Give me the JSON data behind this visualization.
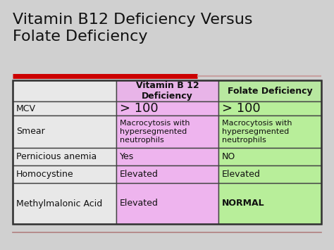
{
  "title": "Vitamin B12 Deficiency Versus\nFolate Deficiency",
  "title_fontsize": 16,
  "title_color": "#111111",
  "bg_color": "#d0d0d0",
  "red_bar_color": "#cc0000",
  "red_bar_thin_color": "#c8a0a0",
  "table": {
    "col_labels": [
      "",
      "Vitamin B 12\nDeficiency",
      "Folate Deficiency"
    ],
    "col_header_bg": [
      "#e8e8e8",
      "#e8b4e8",
      "#b8e8a0"
    ],
    "col_header_fontsize": 9,
    "rows": [
      {
        "label": "MCV",
        "b12": "> 100",
        "folate": "> 100",
        "b12_fontsize": 13,
        "folate_fontsize": 13,
        "b12_bold": false,
        "folate_bold": false
      },
      {
        "label": "Smear",
        "b12": "Macrocytosis with\nhypersegmented\nneutrophils",
        "folate": "Macrocytosis with\nhypersegmented\nneutrophils",
        "b12_fontsize": 8,
        "folate_fontsize": 8,
        "b12_bold": false,
        "folate_bold": false
      },
      {
        "label": "Pernicious anemia",
        "b12": "Yes",
        "folate": "NO",
        "b12_fontsize": 9,
        "folate_fontsize": 9,
        "b12_bold": false,
        "folate_bold": false
      },
      {
        "label": "Homocystine",
        "b12": "Elevated",
        "folate": "Elevated",
        "b12_fontsize": 9,
        "folate_fontsize": 9,
        "b12_bold": false,
        "folate_bold": false
      },
      {
        "label": "Methylmalonic Acid",
        "b12": "Elevated",
        "folate": "NORMAL",
        "b12_fontsize": 9,
        "folate_fontsize": 9,
        "b12_bold": false,
        "folate_bold": true
      }
    ],
    "row_label_fontsize": 9,
    "row_bg_white": "#e8e8e8",
    "col_b12_bg": "#eeb4ee",
    "col_folate_bg": "#b8ee9a"
  },
  "bottom_line_color": "#b08080"
}
